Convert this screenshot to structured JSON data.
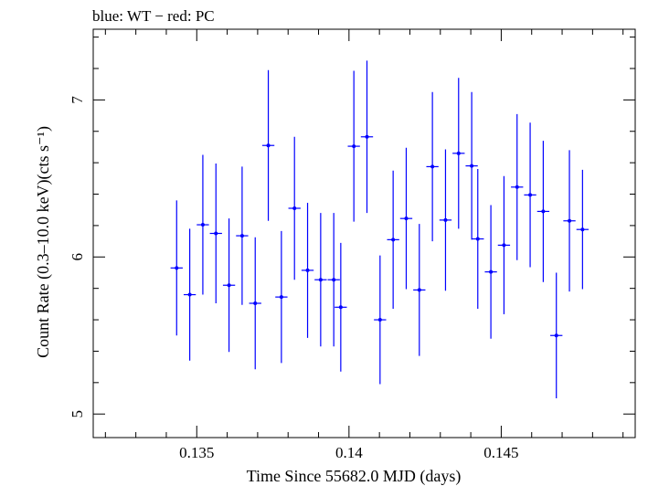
{
  "chart_data": {
    "type": "scatter",
    "title": "blue: WT − red: PC",
    "xlabel": "Time Since 55682.0 MJD (days)",
    "ylabel": "Count Rate (0.3–10.0 keV)(cts s⁻¹)",
    "xlim": [
      0.1316,
      0.1494
    ],
    "ylim": [
      4.85,
      7.45
    ],
    "x_major_ticks": [
      0.135,
      0.14,
      0.145
    ],
    "x_tick_labels": [
      "0.135",
      "0.14",
      "0.145"
    ],
    "y_major_ticks": [
      5,
      6,
      7
    ],
    "y_tick_labels": [
      "5",
      "6",
      "7"
    ],
    "grid": false,
    "series": [
      {
        "color": "#0000ff",
        "points": [
          {
            "x": 0.13434,
            "xerr": 0.0002,
            "y": 5.93,
            "yerr": 0.43
          },
          {
            "x": 0.13477,
            "xerr": 0.0002,
            "y": 5.76,
            "yerr": 0.42
          },
          {
            "x": 0.1352,
            "xerr": 0.0002,
            "y": 6.205,
            "yerr": 0.445
          },
          {
            "x": 0.13563,
            "xerr": 0.0002,
            "y": 6.15,
            "yerr": 0.445
          },
          {
            "x": 0.13606,
            "xerr": 0.0002,
            "y": 5.82,
            "yerr": 0.425
          },
          {
            "x": 0.13649,
            "xerr": 0.0002,
            "y": 6.135,
            "yerr": 0.44
          },
          {
            "x": 0.13692,
            "xerr": 0.0002,
            "y": 5.705,
            "yerr": 0.42
          },
          {
            "x": 0.13735,
            "xerr": 0.0002,
            "y": 6.71,
            "yerr": 0.48
          },
          {
            "x": 0.13778,
            "xerr": 0.0002,
            "y": 5.745,
            "yerr": 0.42
          },
          {
            "x": 0.13821,
            "xerr": 0.0002,
            "y": 6.31,
            "yerr": 0.455
          },
          {
            "x": 0.13864,
            "xerr": 0.0002,
            "y": 5.915,
            "yerr": 0.43
          },
          {
            "x": 0.13907,
            "xerr": 0.0002,
            "y": 5.855,
            "yerr": 0.425
          },
          {
            "x": 0.1395,
            "xerr": 0.0002,
            "y": 5.855,
            "yerr": 0.425
          },
          {
            "x": 0.13973,
            "xerr": 0.0002,
            "y": 5.68,
            "yerr": 0.41
          },
          {
            "x": 0.14016,
            "xerr": 0.0002,
            "y": 6.705,
            "yerr": 0.48
          },
          {
            "x": 0.14059,
            "xerr": 0.0002,
            "y": 6.765,
            "yerr": 0.485
          },
          {
            "x": 0.14102,
            "xerr": 0.0002,
            "y": 5.6,
            "yerr": 0.41
          },
          {
            "x": 0.14145,
            "xerr": 0.0002,
            "y": 6.11,
            "yerr": 0.44
          },
          {
            "x": 0.14188,
            "xerr": 0.0002,
            "y": 6.245,
            "yerr": 0.45
          },
          {
            "x": 0.14231,
            "xerr": 0.0002,
            "y": 5.79,
            "yerr": 0.42
          },
          {
            "x": 0.14274,
            "xerr": 0.0002,
            "y": 6.575,
            "yerr": 0.475
          },
          {
            "x": 0.14317,
            "xerr": 0.0002,
            "y": 6.235,
            "yerr": 0.45
          },
          {
            "x": 0.1436,
            "xerr": 0.0002,
            "y": 6.66,
            "yerr": 0.48
          },
          {
            "x": 0.14403,
            "xerr": 0.0002,
            "y": 6.58,
            "yerr": 0.47
          },
          {
            "x": 0.14423,
            "xerr": 0.0002,
            "y": 6.115,
            "yerr": 0.445
          },
          {
            "x": 0.14466,
            "xerr": 0.0002,
            "y": 5.905,
            "yerr": 0.425
          },
          {
            "x": 0.14509,
            "xerr": 0.0002,
            "y": 6.075,
            "yerr": 0.44
          },
          {
            "x": 0.14552,
            "xerr": 0.0002,
            "y": 6.445,
            "yerr": 0.465
          },
          {
            "x": 0.14595,
            "xerr": 0.0002,
            "y": 6.395,
            "yerr": 0.46
          },
          {
            "x": 0.14638,
            "xerr": 0.0002,
            "y": 6.29,
            "yerr": 0.45
          },
          {
            "x": 0.14681,
            "xerr": 0.0002,
            "y": 5.5,
            "yerr": 0.4
          },
          {
            "x": 0.14724,
            "xerr": 0.0002,
            "y": 6.23,
            "yerr": 0.45
          },
          {
            "x": 0.14767,
            "xerr": 0.0002,
            "y": 6.175,
            "yerr": 0.38
          }
        ]
      }
    ]
  }
}
